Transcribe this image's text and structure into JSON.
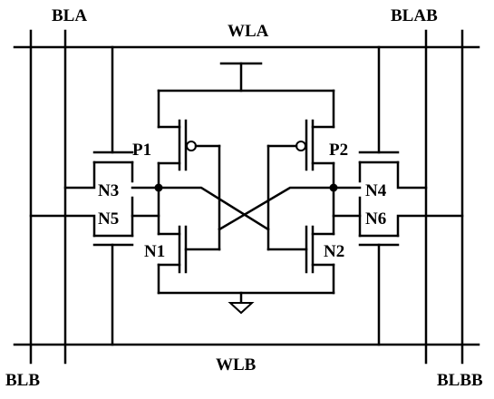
{
  "labels": {
    "bla": "BLA",
    "blab": "BLAB",
    "blb": "BLB",
    "blbb": "BLBB",
    "wla": "WLA",
    "wlb": "WLB",
    "p1": "P1",
    "p2": "P2",
    "n1": "N1",
    "n2": "N2",
    "n3": "N3",
    "n4": "N4",
    "n5": "N5",
    "n6": "N6"
  }
}
